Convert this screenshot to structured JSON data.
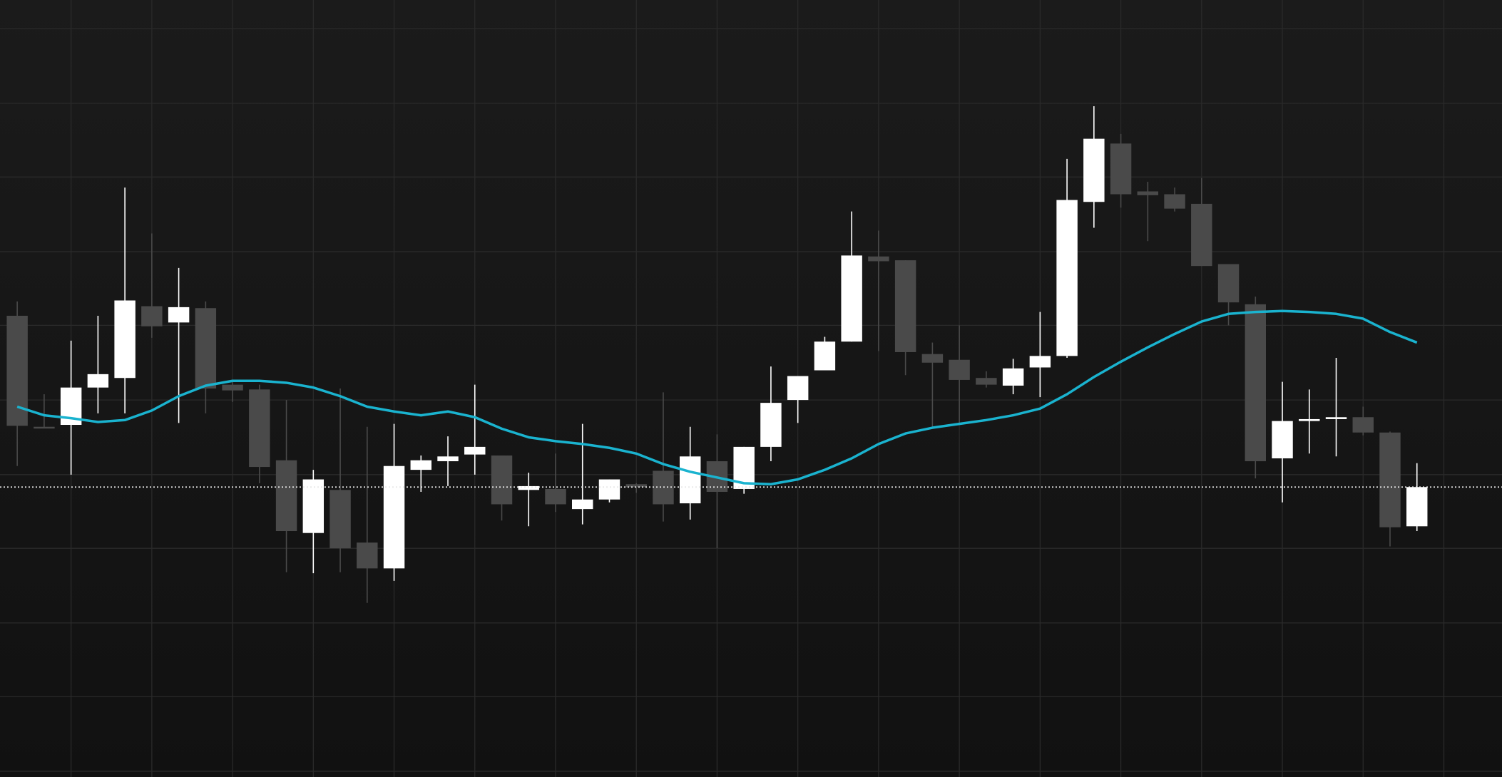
{
  "chart_data": {
    "type": "candlestick",
    "x": [
      0,
      1,
      2,
      3,
      4,
      5,
      6,
      7,
      8,
      9,
      10,
      11,
      12,
      13,
      14,
      15,
      16,
      17,
      18,
      19,
      20,
      21,
      22,
      23,
      24,
      25,
      26,
      27,
      28,
      29,
      30,
      31,
      32,
      33,
      34,
      35,
      36,
      37,
      38,
      39,
      40,
      41,
      42,
      43,
      44,
      45,
      46,
      47,
      48,
      49,
      50,
      51,
      52
    ],
    "open": [
      482,
      366,
      368,
      407,
      417,
      492,
      475,
      490,
      410,
      405,
      331,
      255,
      300,
      245,
      218,
      321,
      330,
      337,
      336,
      300,
      301,
      280,
      290,
      306,
      320,
      286,
      330,
      301,
      345,
      394,
      425,
      455,
      544,
      540,
      442,
      436,
      417,
      409,
      428,
      440,
      601,
      662,
      612,
      609,
      599,
      536,
      494,
      333,
      372,
      374,
      376,
      360,
      262
    ],
    "high": [
      497,
      400,
      456,
      482,
      616,
      568,
      532,
      497,
      415,
      410,
      394,
      321,
      406,
      366,
      369,
      336,
      356,
      410,
      336,
      318,
      338,
      369,
      311,
      307,
      402,
      366,
      358,
      345,
      429,
      419,
      460,
      591,
      571,
      540,
      454,
      472,
      424,
      437,
      486,
      646,
      701,
      672,
      622,
      616,
      626,
      536,
      502,
      413,
      405,
      438,
      387,
      361,
      328
    ],
    "low": [
      325,
      365,
      316,
      380,
      380,
      459,
      370,
      380,
      392,
      307,
      214,
      213,
      214,
      182,
      205,
      298,
      304,
      316,
      268,
      262,
      277,
      264,
      287,
      297,
      267,
      269,
      239,
      296,
      330,
      370,
      425,
      455,
      445,
      420,
      365,
      370,
      407,
      400,
      397,
      438,
      574,
      595,
      560,
      591,
      534,
      472,
      312,
      287,
      338,
      335,
      357,
      241,
      257
    ],
    "close": [
      367,
      365,
      407,
      421,
      498,
      471,
      491,
      406,
      404,
      324,
      257,
      311,
      239,
      218,
      325,
      331,
      335,
      345,
      285,
      304,
      285,
      290,
      311,
      303,
      285,
      335,
      298,
      345,
      391,
      419,
      455,
      545,
      539,
      444,
      433,
      415,
      410,
      427,
      440,
      603,
      667,
      609,
      608,
      594,
      534,
      496,
      330,
      372,
      374,
      376,
      360,
      261,
      303
    ],
    "up_color": "#ffffff",
    "down_color": "#4a4a4a",
    "overlay": {
      "color": "#1ab3cf",
      "values": [
        387,
        378,
        375,
        371,
        373,
        383,
        398,
        409,
        414,
        414,
        412,
        407,
        398,
        387,
        382,
        378,
        382,
        376,
        364,
        355,
        351,
        348,
        344,
        338,
        327,
        319,
        313,
        307,
        306,
        311,
        321,
        333,
        348,
        359,
        365,
        369,
        373,
        378,
        385,
        400,
        418,
        434,
        449,
        463,
        476,
        484,
        486,
        487,
        486,
        484,
        479,
        465,
        454
      ]
    },
    "price_line": 303,
    "xlim": [
      -0.64,
      55.16
    ],
    "ylim": [
      0,
      812
    ],
    "xticks": [
      2,
      5,
      8,
      11,
      14,
      17,
      20,
      23,
      26,
      29,
      32,
      35,
      38,
      41,
      44,
      47,
      50,
      53
    ],
    "yticks": [
      6,
      84,
      161,
      239,
      316,
      394,
      472,
      549,
      627,
      704,
      782
    ],
    "grid": true
  }
}
